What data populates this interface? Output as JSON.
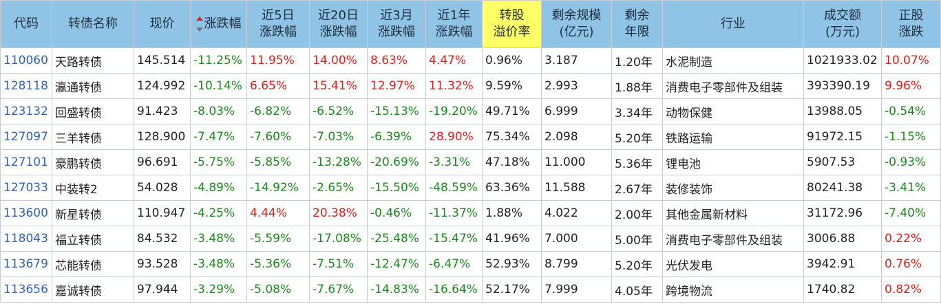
{
  "headers": [
    {
      "key": "code",
      "label": [
        "代码"
      ]
    },
    {
      "key": "name",
      "label": [
        "转债名称"
      ]
    },
    {
      "key": "price",
      "label": [
        "现价"
      ]
    },
    {
      "key": "chg",
      "label": [
        "涨跌幅"
      ],
      "sorted": "desc"
    },
    {
      "key": "d5",
      "label": [
        "近5日",
        "涨跌幅"
      ]
    },
    {
      "key": "d20",
      "label": [
        "近20日",
        "涨跌幅"
      ]
    },
    {
      "key": "m3",
      "label": [
        "近3月",
        "涨跌幅"
      ]
    },
    {
      "key": "y1",
      "label": [
        "近1年",
        "涨跌幅"
      ]
    },
    {
      "key": "premium",
      "label": [
        "转股",
        "溢价率"
      ],
      "highlight": true
    },
    {
      "key": "scale",
      "label": [
        "剩余规模",
        "(亿元)"
      ]
    },
    {
      "key": "term",
      "label": [
        "剩余",
        "年限"
      ]
    },
    {
      "key": "industry",
      "label": [
        "行业"
      ]
    },
    {
      "key": "turnover",
      "label": [
        "成交额",
        "(万元)"
      ]
    },
    {
      "key": "stock_chg",
      "label": [
        "正股",
        "涨跌"
      ]
    }
  ],
  "colors": {
    "up": "#e0201b",
    "down": "#1a8a1a",
    "header_bg": "#8fc4e6",
    "highlight": "#ffff66",
    "code": "#2f63b8"
  },
  "rows": [
    {
      "code": "110060",
      "name": "天路转债",
      "price": "145.514",
      "chg": "-11.25%",
      "d5": "11.95%",
      "d20": "14.00%",
      "m3": "8.63%",
      "y1": "4.47%",
      "premium": "0.96%",
      "scale": "3.187",
      "term": "1.20年",
      "industry": "水泥制造",
      "turnover": "1021933.02",
      "stock_chg": "10.07%"
    },
    {
      "code": "128118",
      "name": "瀛通转债",
      "price": "124.992",
      "chg": "-10.14%",
      "d5": "6.65%",
      "d20": "15.41%",
      "m3": "12.97%",
      "y1": "11.32%",
      "premium": "9.59%",
      "scale": "2.993",
      "term": "1.88年",
      "industry": "消费电子零部件及组装",
      "turnover": "393390.19",
      "stock_chg": "9.96%"
    },
    {
      "code": "123132",
      "name": "回盛转债",
      "price": "91.423",
      "chg": "-8.03%",
      "d5": "-6.82%",
      "d20": "-6.52%",
      "m3": "-15.13%",
      "y1": "-19.20%",
      "premium": "49.71%",
      "scale": "6.999",
      "term": "3.34年",
      "industry": "动物保健",
      "turnover": "13988.05",
      "stock_chg": "-0.54%"
    },
    {
      "code": "127097",
      "name": "三羊转债",
      "price": "128.900",
      "chg": "-7.47%",
      "d5": "-7.60%",
      "d20": "-7.03%",
      "m3": "-6.39%",
      "y1": "28.90%",
      "premium": "75.34%",
      "scale": "2.098",
      "term": "5.20年",
      "industry": "铁路运输",
      "turnover": "91972.15",
      "stock_chg": "-1.15%"
    },
    {
      "code": "127101",
      "name": "豪鹏转债",
      "price": "96.691",
      "chg": "-5.75%",
      "d5": "-5.85%",
      "d20": "-13.28%",
      "m3": "-20.69%",
      "y1": "-3.31%",
      "premium": "47.18%",
      "scale": "11.000",
      "term": "5.36年",
      "industry": "锂电池",
      "turnover": "5907.53",
      "stock_chg": "-0.93%"
    },
    {
      "code": "127033",
      "name": "中装转2",
      "price": "54.028",
      "chg": "-4.89%",
      "d5": "-14.92%",
      "d20": "-2.65%",
      "m3": "-15.50%",
      "y1": "-48.59%",
      "premium": "63.36%",
      "scale": "11.588",
      "term": "2.67年",
      "industry": "装修装饰",
      "turnover": "80241.38",
      "stock_chg": "-3.41%"
    },
    {
      "code": "113600",
      "name": "新星转债",
      "price": "110.947",
      "chg": "-4.25%",
      "d5": "4.44%",
      "d20": "20.38%",
      "m3": "-0.46%",
      "y1": "-11.37%",
      "premium": "1.88%",
      "scale": "4.022",
      "term": "2.00年",
      "industry": "其他金属新材料",
      "turnover": "31172.96",
      "stock_chg": "-7.40%"
    },
    {
      "code": "118043",
      "name": "福立转债",
      "price": "84.532",
      "chg": "-3.48%",
      "d5": "-5.59%",
      "d20": "-17.08%",
      "m3": "-25.48%",
      "y1": "-15.47%",
      "premium": "41.96%",
      "scale": "7.000",
      "term": "5.00年",
      "industry": "消费电子零部件及组装",
      "turnover": "3006.88",
      "stock_chg": "0.22%"
    },
    {
      "code": "113679",
      "name": "芯能转债",
      "price": "93.528",
      "chg": "-3.48%",
      "d5": "-5.36%",
      "d20": "-7.51%",
      "m3": "-12.47%",
      "y1": "-6.47%",
      "premium": "52.93%",
      "scale": "8.799",
      "term": "5.20年",
      "industry": "光伏发电",
      "turnover": "3942.91",
      "stock_chg": "0.76%"
    },
    {
      "code": "113656",
      "name": "嘉诚转债",
      "price": "97.944",
      "chg": "-3.29%",
      "d5": "-5.08%",
      "d20": "-7.67%",
      "m3": "-14.83%",
      "y1": "-16.64%",
      "premium": "52.17%",
      "scale": "7.999",
      "term": "4.05年",
      "industry": "跨境物流",
      "turnover": "1740.82",
      "stock_chg": "0.82%"
    }
  ]
}
